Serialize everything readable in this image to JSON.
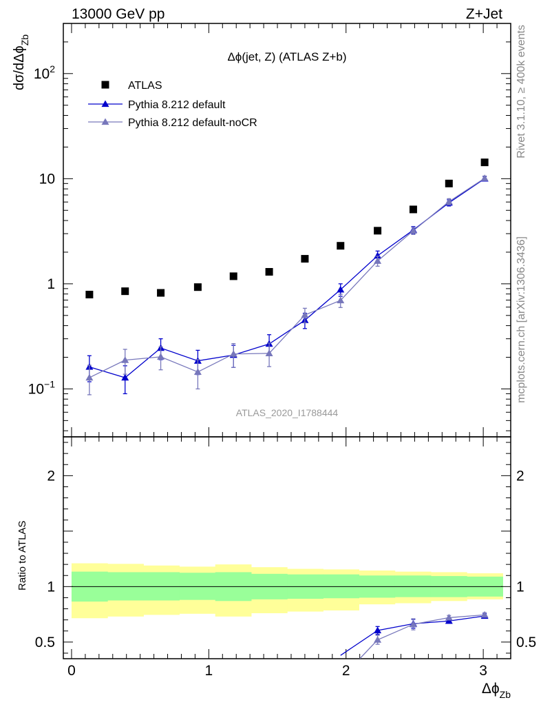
{
  "header": {
    "left": "13000 GeV pp",
    "right": "Z+Jet"
  },
  "side_labels": {
    "top": "Rivet 3.1.10, ≥ 400k events",
    "bottom": "mcplots.cern.ch [arXiv:1306.3436]"
  },
  "chart_data": [
    {
      "type": "scatter",
      "panel": "main",
      "title": "Δϕ(jet, Z) (ATLAS Z+b)",
      "watermark": "ATLAS_2020_I1788444",
      "ylabel_main": "dσ/dΔϕ",
      "ylabel_sub": "Zb",
      "yscale": "log",
      "xlim": [
        -0.06,
        3.2
      ],
      "ylim": [
        0.035,
        300
      ],
      "yticks": [
        {
          "v": 0.1,
          "base": "10",
          "exp": "−1"
        },
        {
          "v": 1,
          "base": "1",
          "exp": ""
        },
        {
          "v": 10,
          "base": "10",
          "exp": ""
        },
        {
          "v": 100,
          "base": "10",
          "exp": "2"
        }
      ],
      "legend_position": "top-left",
      "series": [
        {
          "name": "ATLAS",
          "color": "#000000",
          "marker": "square",
          "line": false,
          "x": [
            0.13,
            0.39,
            0.65,
            0.92,
            1.18,
            1.44,
            1.7,
            1.96,
            2.23,
            2.49,
            2.75,
            3.01
          ],
          "y": [
            0.79,
            0.85,
            0.82,
            0.93,
            1.18,
            1.3,
            1.73,
            2.3,
            3.2,
            5.1,
            9.0,
            14.3
          ]
        },
        {
          "name": "Pythia 8.212 default",
          "color": "#0000cc",
          "marker": "triangle",
          "line": true,
          "x": [
            0.13,
            0.39,
            0.65,
            0.92,
            1.18,
            1.44,
            1.7,
            1.96,
            2.23,
            2.49,
            2.75,
            3.01
          ],
          "y": [
            0.162,
            0.128,
            0.245,
            0.185,
            0.21,
            0.268,
            0.45,
            0.88,
            1.85,
            3.25,
            5.9,
            10.0
          ],
          "err": [
            0.045,
            0.038,
            0.055,
            0.048,
            0.05,
            0.06,
            0.075,
            0.12,
            0.2,
            0.25,
            0.4,
            0.5
          ]
        },
        {
          "name": "Pythia 8.212 default-noCR",
          "color": "#7777bb",
          "marker": "triangle",
          "line": true,
          "x": [
            0.13,
            0.39,
            0.65,
            0.92,
            1.18,
            1.44,
            1.7,
            1.96,
            2.23,
            2.49,
            2.75,
            3.01
          ],
          "y": [
            0.128,
            0.188,
            0.202,
            0.145,
            0.215,
            0.218,
            0.505,
            0.695,
            1.65,
            3.2,
            6.05,
            10.1
          ],
          "err": [
            0.04,
            0.05,
            0.05,
            0.045,
            0.055,
            0.055,
            0.08,
            0.1,
            0.18,
            0.25,
            0.4,
            0.5
          ]
        }
      ]
    },
    {
      "type": "scatter",
      "panel": "ratio",
      "ylabel": "Ratio to ATLAS",
      "xlabel_main": "Δϕ",
      "xlabel_sub": "Zb",
      "xlim": [
        -0.06,
        3.2
      ],
      "ylim": [
        0.35,
        2.35
      ],
      "xticks": [
        0,
        1,
        2,
        3
      ],
      "yticks": [
        0.5,
        1,
        2
      ],
      "band_edges": [
        0,
        0.262,
        0.524,
        0.785,
        1.047,
        1.309,
        1.571,
        1.833,
        2.094,
        2.356,
        2.618,
        2.88,
        3.142
      ],
      "band_green": [
        [
          0.865,
          1.135
        ],
        [
          0.875,
          1.13
        ],
        [
          0.875,
          1.13
        ],
        [
          0.88,
          1.125
        ],
        [
          0.87,
          1.13
        ],
        [
          0.885,
          1.115
        ],
        [
          0.89,
          1.11
        ],
        [
          0.895,
          1.11
        ],
        [
          0.9,
          1.1
        ],
        [
          0.905,
          1.1
        ],
        [
          0.905,
          1.095
        ],
        [
          0.91,
          1.09
        ]
      ],
      "band_yellow": [
        [
          0.715,
          1.21
        ],
        [
          0.73,
          1.205
        ],
        [
          0.745,
          1.19
        ],
        [
          0.755,
          1.18
        ],
        [
          0.73,
          1.2
        ],
        [
          0.76,
          1.175
        ],
        [
          0.775,
          1.16
        ],
        [
          0.785,
          1.155
        ],
        [
          0.84,
          1.145
        ],
        [
          0.85,
          1.135
        ],
        [
          0.87,
          1.13
        ],
        [
          0.885,
          1.12
        ]
      ],
      "band_colors": {
        "green": "#99ff99",
        "yellow": "#ffff99"
      },
      "series": [
        {
          "name": "Pythia 8.212 default",
          "color": "#0000cc",
          "x": [
            1.96,
            2.23,
            2.49,
            2.75,
            3.01
          ],
          "y": [
            0.38,
            0.605,
            0.665,
            0.69,
            0.735
          ],
          "err": [
            0.03,
            0.035,
            0.04,
            0.02,
            0.02
          ]
        },
        {
          "name": "Pythia 8.212 default-noCR",
          "color": "#7777bb",
          "x": [
            2.1,
            2.23,
            2.49,
            2.75,
            3.01
          ],
          "y": [
            0.35,
            0.52,
            0.66,
            0.72,
            0.745
          ],
          "err": [
            0.03,
            0.04,
            0.05,
            0.02,
            0.02
          ]
        }
      ]
    }
  ]
}
